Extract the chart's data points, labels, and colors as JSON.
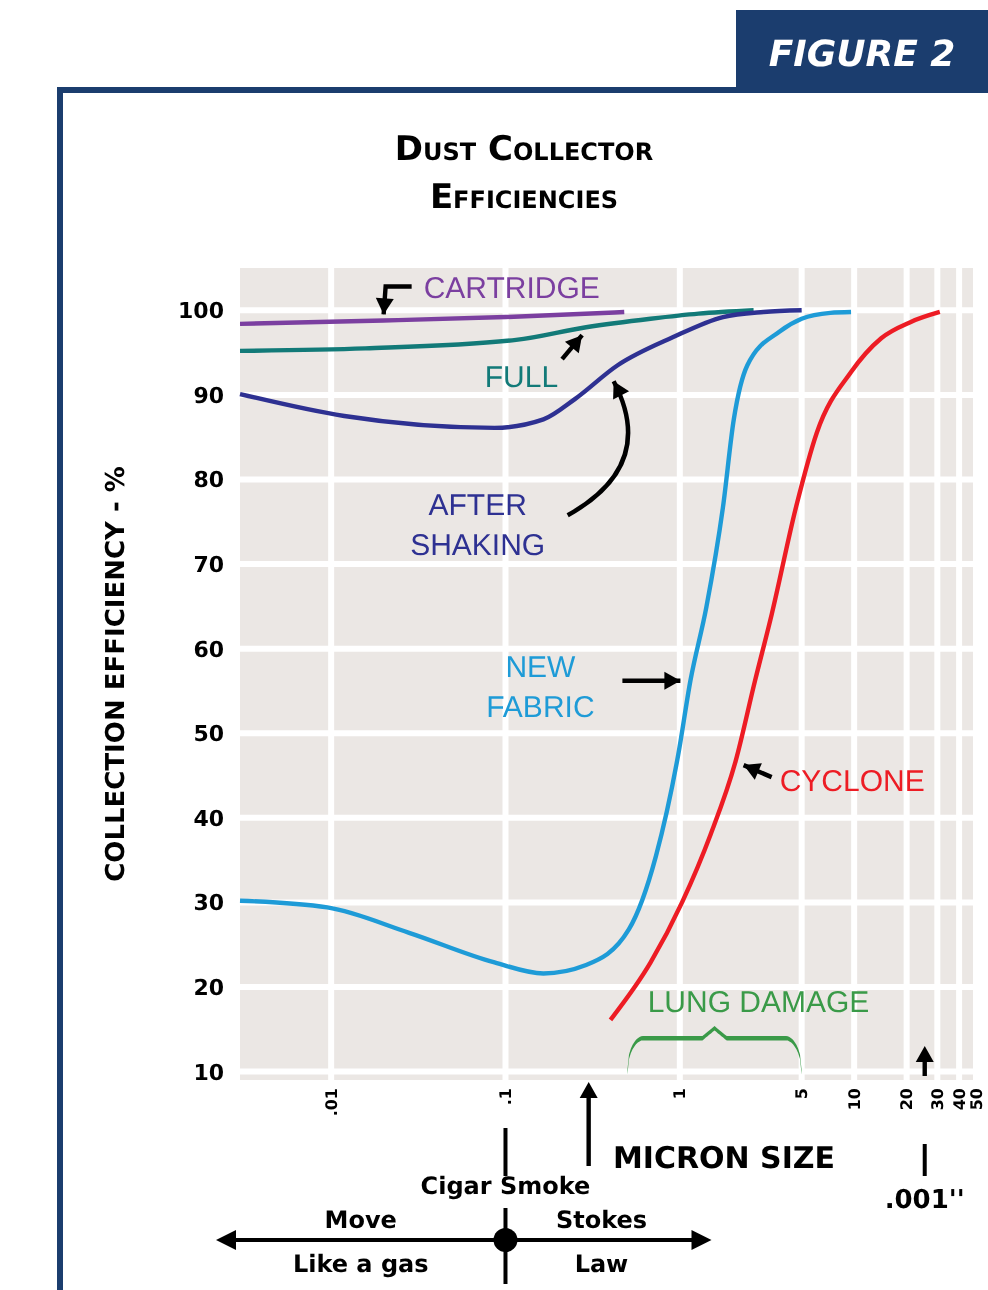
{
  "chart_data": {
    "type": "line",
    "title": "Dust Collector Efficiencies",
    "xlabel": "MICRON SIZE",
    "ylabel": "COLLECTION EFFICIENCY - %",
    "annotations": [
      "FIGURE 2",
      "LUNG DAMAGE",
      "Cigar Smoke",
      ".001''",
      "Move",
      "Like a gas",
      "Stokes",
      "Law"
    ],
    "log": "x",
    "xlim": [
      0.003,
      50
    ],
    "xticks": [
      {
        "value": 0.01,
        "label": ".01"
      },
      {
        "value": 0.1,
        "label": ".1"
      },
      1,
      5,
      10,
      20,
      30,
      40,
      50
    ],
    "ylim": [
      9,
      105
    ],
    "yticks": [
      10,
      20,
      30,
      40,
      50,
      60,
      70,
      80,
      90,
      100
    ],
    "grid": true,
    "marker": "none",
    "line_style": "solid",
    "series": [
      {
        "name": "CARTRIDGE",
        "color": "#7b3fa0",
        "x": [
          0.003,
          0.02,
          0.1,
          0.48
        ],
        "values": [
          98.4,
          98.8,
          99.2,
          99.8
        ]
      },
      {
        "name": "FULL",
        "color": "#127a78",
        "x": [
          0.003,
          0.0157,
          0.115,
          0.29,
          0.68,
          1.28,
          2.65
        ],
        "values": [
          95.2,
          95.5,
          96.5,
          98.0,
          99.0,
          99.6,
          100
        ]
      },
      {
        "name": "AFTER SHAKING",
        "color": "#2e3192",
        "x": [
          0.003,
          0.0119,
          0.0865,
          0.165,
          0.25,
          0.44,
          0.91,
          1.77,
          3.02,
          5
        ],
        "values": [
          90.1,
          87.5,
          86.1,
          87.1,
          89.5,
          93.5,
          96.8,
          99.2,
          99.8,
          100
        ]
      },
      {
        "name": "NEW FABRIC",
        "color": "#1e9bd7",
        "x": [
          0.003,
          0.0095,
          0.028,
          0.0865,
          0.165,
          0.29,
          0.51,
          0.73,
          0.98,
          1.15,
          1.42,
          1.77,
          2.04,
          2.44,
          3.74,
          5,
          7.3,
          9.6
        ],
        "values": [
          30.2,
          29.4,
          26.4,
          22.9,
          21.6,
          22.6,
          26.8,
          35.5,
          47.5,
          56.2,
          64.9,
          76.8,
          87.1,
          93.5,
          97.5,
          99.0,
          99.7,
          99.8
        ]
      },
      {
        "name": "CYCLONE",
        "color": "#ed1c24",
        "x": [
          0.4,
          0.68,
          1.03,
          1.5,
          2.09,
          2.7,
          3.37,
          4.65,
          6.1,
          9.6,
          14.3,
          21,
          31
        ],
        "values": [
          16.1,
          22.9,
          30,
          38,
          46.7,
          56.2,
          64.1,
          76.8,
          85.5,
          92.7,
          96.7,
          98.6,
          99.8
        ]
      }
    ]
  }
}
